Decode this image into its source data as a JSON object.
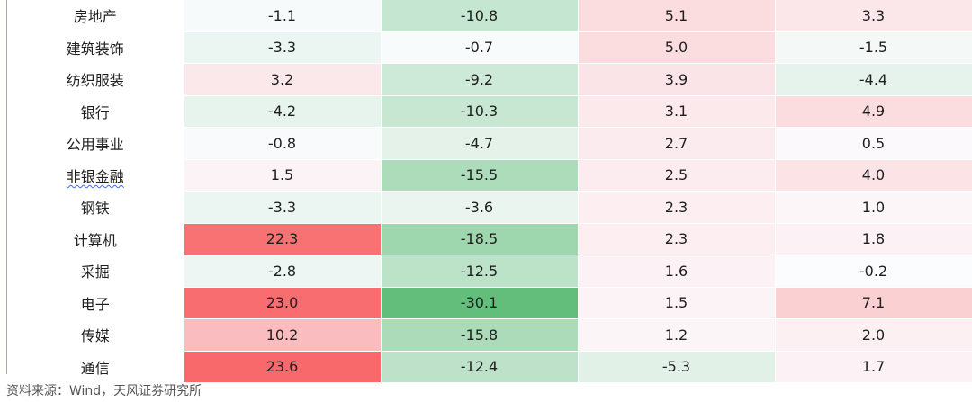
{
  "source_note": "资料来源：Wind，天风证券研究所",
  "color_scale": {
    "positive_max": "#f8696b",
    "neutral": "#fcfcff",
    "negative_max": "#63be7b"
  },
  "chart_data": {
    "type": "table",
    "title": "",
    "rows": [
      {
        "industry": "房地产",
        "values": [
          -1.1,
          -10.8,
          5.1,
          3.3
        ]
      },
      {
        "industry": "建筑装饰",
        "values": [
          -3.3,
          -0.7,
          5.0,
          -1.5
        ]
      },
      {
        "industry": "纺织服装",
        "values": [
          3.2,
          -9.2,
          3.9,
          -4.4
        ]
      },
      {
        "industry": "银行",
        "values": [
          -4.2,
          -10.3,
          3.1,
          4.9
        ]
      },
      {
        "industry": "公用事业",
        "values": [
          -0.8,
          -4.7,
          2.7,
          0.5
        ]
      },
      {
        "industry": "非银金融",
        "values": [
          1.5,
          -15.5,
          2.5,
          4.0
        ]
      },
      {
        "industry": "钢铁",
        "values": [
          -3.3,
          -3.6,
          2.3,
          1.0
        ]
      },
      {
        "industry": "计算机",
        "values": [
          22.3,
          -18.5,
          2.3,
          1.8
        ]
      },
      {
        "industry": "采掘",
        "values": [
          -2.8,
          -12.5,
          1.6,
          -0.2
        ]
      },
      {
        "industry": "电子",
        "values": [
          23.0,
          -30.1,
          1.5,
          7.1
        ]
      },
      {
        "industry": "传媒",
        "values": [
          10.2,
          -15.8,
          1.2,
          2.0
        ]
      },
      {
        "industry": "通信",
        "values": [
          23.6,
          -12.4,
          -5.3,
          1.7
        ]
      }
    ]
  }
}
